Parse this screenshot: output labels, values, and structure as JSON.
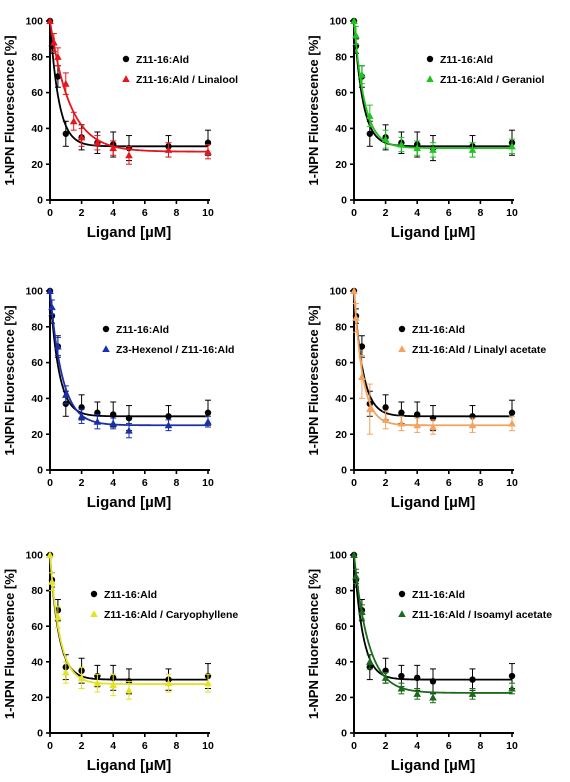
{
  "chart_data": [
    {
      "type": "scatter",
      "xlabel": "Ligand [µM]",
      "ylabel": "1-NPN Fluorescence [%]",
      "xlim": [
        0,
        10
      ],
      "ylim": [
        0,
        100
      ],
      "xticks": [
        "0",
        "2",
        "4",
        "6",
        "8",
        "10"
      ],
      "yticks": [
        "0",
        "20",
        "40",
        "60",
        "80",
        "100"
      ],
      "grid": false,
      "legend_position": "top-right",
      "series": [
        {
          "name": "Z11-16:Ald",
          "color": "#000000",
          "marker": "circle",
          "points": [
            {
              "x": 0,
              "y": 100,
              "err": 0
            },
            {
              "x": 0.125,
              "y": 86,
              "err": 4
            },
            {
              "x": 0.5,
              "y": 69,
              "err": 6
            },
            {
              "x": 1,
              "y": 37,
              "err": 7
            },
            {
              "x": 2,
              "y": 35,
              "err": 7
            },
            {
              "x": 3,
              "y": 32,
              "err": 6
            },
            {
              "x": 4,
              "y": 31,
              "err": 7
            },
            {
              "x": 5,
              "y": 29,
              "err": 7
            },
            {
              "x": 7.5,
              "y": 30,
              "err": 6
            },
            {
              "x": 10,
              "y": 32,
              "err": 7
            }
          ],
          "fit": {
            "plateau": 30,
            "k": 1.8
          }
        },
        {
          "name": "Z11-16:Ald / Linalool",
          "color": "#e8141b",
          "marker": "triangle",
          "points": [
            {
              "x": 0,
              "y": 100,
              "err": 0
            },
            {
              "x": 0.25,
              "y": 88,
              "err": 5
            },
            {
              "x": 0.5,
              "y": 80,
              "err": 5
            },
            {
              "x": 1,
              "y": 65,
              "err": 6
            },
            {
              "x": 1.5,
              "y": 44,
              "err": 5
            },
            {
              "x": 2,
              "y": 35,
              "err": 5
            },
            {
              "x": 3,
              "y": 32,
              "err": 4
            },
            {
              "x": 4,
              "y": 29,
              "err": 4
            },
            {
              "x": 5,
              "y": 25,
              "err": 5
            },
            {
              "x": 7.5,
              "y": 28,
              "err": 4
            },
            {
              "x": 10,
              "y": 27,
              "err": 4
            }
          ],
          "fit": {
            "plateau": 27,
            "k": 0.8
          }
        }
      ]
    },
    {
      "type": "scatter",
      "xlabel": "Ligand [µM]",
      "ylabel": "1-NPN Fluorescence [%]",
      "xlim": [
        0,
        10
      ],
      "ylim": [
        0,
        100
      ],
      "xticks": [
        "0",
        "2",
        "4",
        "6",
        "8",
        "10"
      ],
      "yticks": [
        "0",
        "20",
        "40",
        "60",
        "80",
        "100"
      ],
      "grid": false,
      "legend_position": "top-right",
      "series": [
        {
          "name": "Z11-16:Ald",
          "color": "#000000",
          "marker": "circle",
          "points": [
            {
              "x": 0,
              "y": 100,
              "err": 0
            },
            {
              "x": 0.125,
              "y": 86,
              "err": 4
            },
            {
              "x": 0.5,
              "y": 69,
              "err": 6
            },
            {
              "x": 1,
              "y": 37,
              "err": 7
            },
            {
              "x": 2,
              "y": 35,
              "err": 7
            },
            {
              "x": 3,
              "y": 32,
              "err": 6
            },
            {
              "x": 4,
              "y": 31,
              "err": 7
            },
            {
              "x": 5,
              "y": 29,
              "err": 7
            },
            {
              "x": 7.5,
              "y": 30,
              "err": 6
            },
            {
              "x": 10,
              "y": 32,
              "err": 7
            }
          ],
          "fit": {
            "plateau": 30,
            "k": 1.8
          }
        },
        {
          "name": "Z11-16:Ald / Geraniol",
          "color": "#1fc41f",
          "marker": "triangle",
          "points": [
            {
              "x": 0,
              "y": 100,
              "err": 0
            },
            {
              "x": 0.125,
              "y": 92,
              "err": 5
            },
            {
              "x": 0.5,
              "y": 70,
              "err": 5
            },
            {
              "x": 1,
              "y": 47,
              "err": 6
            },
            {
              "x": 2,
              "y": 34,
              "err": 5
            },
            {
              "x": 3,
              "y": 31,
              "err": 4
            },
            {
              "x": 4,
              "y": 29,
              "err": 4
            },
            {
              "x": 5,
              "y": 28,
              "err": 4
            },
            {
              "x": 7.5,
              "y": 28,
              "err": 4
            },
            {
              "x": 10,
              "y": 30,
              "err": 4
            }
          ],
          "fit": {
            "plateau": 29,
            "k": 1.5
          }
        }
      ]
    },
    {
      "type": "scatter",
      "xlabel": "Ligand [µM]",
      "ylabel": "1-NPN Fluorescence [%]",
      "xlim": [
        0,
        10
      ],
      "ylim": [
        0,
        100
      ],
      "xticks": [
        "0",
        "2",
        "4",
        "6",
        "8",
        "10"
      ],
      "yticks": [
        "0",
        "20",
        "40",
        "60",
        "80",
        "100"
      ],
      "grid": false,
      "legend_position": "middle-right",
      "series": [
        {
          "name": "Z11-16:Ald",
          "color": "#000000",
          "marker": "circle",
          "points": [
            {
              "x": 0,
              "y": 100,
              "err": 0
            },
            {
              "x": 0.125,
              "y": 86,
              "err": 4
            },
            {
              "x": 0.5,
              "y": 69,
              "err": 6
            },
            {
              "x": 1,
              "y": 37,
              "err": 7
            },
            {
              "x": 2,
              "y": 35,
              "err": 7
            },
            {
              "x": 3,
              "y": 32,
              "err": 6
            },
            {
              "x": 4,
              "y": 31,
              "err": 7
            },
            {
              "x": 5,
              "y": 29,
              "err": 7
            },
            {
              "x": 7.5,
              "y": 30,
              "err": 6
            },
            {
              "x": 10,
              "y": 32,
              "err": 7
            }
          ],
          "fit": {
            "plateau": 30,
            "k": 1.8
          }
        },
        {
          "name": "Z3-Hexenol / Z11-16:Ald",
          "color": "#1a2fae",
          "marker": "triangle",
          "points": [
            {
              "x": 0,
              "y": 100,
              "err": 0
            },
            {
              "x": 0.125,
              "y": 91,
              "err": 4
            },
            {
              "x": 0.5,
              "y": 69,
              "err": 5
            },
            {
              "x": 1,
              "y": 42,
              "err": 5
            },
            {
              "x": 2,
              "y": 30,
              "err": 4
            },
            {
              "x": 3,
              "y": 27,
              "err": 4
            },
            {
              "x": 4,
              "y": 26,
              "err": 3
            },
            {
              "x": 5,
              "y": 22,
              "err": 4
            },
            {
              "x": 7.5,
              "y": 25,
              "err": 3
            },
            {
              "x": 10,
              "y": 27,
              "err": 3
            }
          ],
          "fit": {
            "plateau": 25,
            "k": 1.3
          }
        }
      ]
    },
    {
      "type": "scatter",
      "xlabel": "Ligand [µM]",
      "ylabel": "1-NPN Fluorescence [%]",
      "xlim": [
        0,
        10
      ],
      "ylim": [
        0,
        100
      ],
      "xticks": [
        "0",
        "2",
        "4",
        "6",
        "8",
        "10"
      ],
      "yticks": [
        "0",
        "20",
        "40",
        "60",
        "80",
        "100"
      ],
      "grid": false,
      "legend_position": "middle-right",
      "series": [
        {
          "name": "Z11-16:Ald",
          "color": "#000000",
          "marker": "circle",
          "points": [
            {
              "x": 0,
              "y": 100,
              "err": 0
            },
            {
              "x": 0.125,
              "y": 86,
              "err": 4
            },
            {
              "x": 0.5,
              "y": 69,
              "err": 6
            },
            {
              "x": 1,
              "y": 37,
              "err": 7
            },
            {
              "x": 2,
              "y": 35,
              "err": 7
            },
            {
              "x": 3,
              "y": 32,
              "err": 6
            },
            {
              "x": 4,
              "y": 31,
              "err": 7
            },
            {
              "x": 5,
              "y": 29,
              "err": 7
            },
            {
              "x": 7.5,
              "y": 30,
              "err": 6
            },
            {
              "x": 10,
              "y": 32,
              "err": 7
            }
          ],
          "fit": {
            "plateau": 30,
            "k": 1.8
          }
        },
        {
          "name": "Z11-16:Ald / Linalyl acetate",
          "color": "#f5a25d",
          "marker": "triangle",
          "points": [
            {
              "x": 0,
              "y": 100,
              "err": 0
            },
            {
              "x": 0.125,
              "y": 85,
              "err": 8
            },
            {
              "x": 0.5,
              "y": 52,
              "err": 12
            },
            {
              "x": 1,
              "y": 34,
              "err": 14
            },
            {
              "x": 2,
              "y": 28,
              "err": 5
            },
            {
              "x": 3,
              "y": 26,
              "err": 4
            },
            {
              "x": 4,
              "y": 25,
              "err": 4
            },
            {
              "x": 5,
              "y": 24,
              "err": 4
            },
            {
              "x": 7.5,
              "y": 25,
              "err": 4
            },
            {
              "x": 10,
              "y": 26,
              "err": 4
            }
          ],
          "fit": {
            "plateau": 25,
            "k": 1.8
          }
        }
      ]
    },
    {
      "type": "scatter",
      "xlabel": "Ligand [µM]",
      "ylabel": "1-NPN Fluorescence [%]",
      "xlim": [
        0,
        10
      ],
      "ylim": [
        0,
        100
      ],
      "xticks": [
        "0",
        "2",
        "4",
        "6",
        "8",
        "10"
      ],
      "yticks": [
        "0",
        "20",
        "40",
        "60",
        "80",
        "100"
      ],
      "grid": false,
      "legend_position": "middle-right",
      "series": [
        {
          "name": "Z11-16:Ald",
          "color": "#000000",
          "marker": "circle",
          "points": [
            {
              "x": 0,
              "y": 100,
              "err": 0
            },
            {
              "x": 0.125,
              "y": 86,
              "err": 4
            },
            {
              "x": 0.5,
              "y": 69,
              "err": 6
            },
            {
              "x": 1,
              "y": 37,
              "err": 7
            },
            {
              "x": 2,
              "y": 35,
              "err": 7
            },
            {
              "x": 3,
              "y": 32,
              "err": 6
            },
            {
              "x": 4,
              "y": 31,
              "err": 7
            },
            {
              "x": 5,
              "y": 29,
              "err": 7
            },
            {
              "x": 7.5,
              "y": 30,
              "err": 6
            },
            {
              "x": 10,
              "y": 32,
              "err": 7
            }
          ],
          "fit": {
            "plateau": 30,
            "k": 1.8
          }
        },
        {
          "name": "Z11-16:Ald / Caryophyllene",
          "color": "#e3e324",
          "marker": "triangle",
          "points": [
            {
              "x": 0,
              "y": 100,
              "err": 0
            },
            {
              "x": 0.125,
              "y": 85,
              "err": 5
            },
            {
              "x": 0.5,
              "y": 65,
              "err": 6
            },
            {
              "x": 1,
              "y": 34,
              "err": 6
            },
            {
              "x": 2,
              "y": 31,
              "err": 6
            },
            {
              "x": 3,
              "y": 28,
              "err": 5
            },
            {
              "x": 4,
              "y": 27,
              "err": 6
            },
            {
              "x": 5,
              "y": 24,
              "err": 5
            },
            {
              "x": 7.5,
              "y": 28,
              "err": 5
            },
            {
              "x": 10,
              "y": 28,
              "err": 5
            }
          ],
          "fit": {
            "plateau": 27.5,
            "k": 1.6
          }
        }
      ]
    },
    {
      "type": "scatter",
      "xlabel": "Ligand [µM]",
      "ylabel": "1-NPN Fluorescence [%]",
      "xlim": [
        0,
        10
      ],
      "ylim": [
        0,
        100
      ],
      "xticks": [
        "0",
        "2",
        "4",
        "6",
        "8",
        "10"
      ],
      "yticks": [
        "0",
        "20",
        "40",
        "60",
        "80",
        "100"
      ],
      "grid": false,
      "legend_position": "middle-right",
      "series": [
        {
          "name": "Z11-16:Ald",
          "color": "#000000",
          "marker": "circle",
          "points": [
            {
              "x": 0,
              "y": 100,
              "err": 0
            },
            {
              "x": 0.125,
              "y": 86,
              "err": 4
            },
            {
              "x": 0.5,
              "y": 69,
              "err": 6
            },
            {
              "x": 1,
              "y": 37,
              "err": 7
            },
            {
              "x": 2,
              "y": 35,
              "err": 7
            },
            {
              "x": 3,
              "y": 32,
              "err": 6
            },
            {
              "x": 4,
              "y": 31,
              "err": 7
            },
            {
              "x": 5,
              "y": 29,
              "err": 7
            },
            {
              "x": 7.5,
              "y": 30,
              "err": 6
            },
            {
              "x": 10,
              "y": 32,
              "err": 7
            }
          ],
          "fit": {
            "plateau": 30,
            "k": 1.8
          }
        },
        {
          "name": "Z11-16:Ald / Isoamyl acetate",
          "color": "#1c6b1c",
          "marker": "triangle",
          "points": [
            {
              "x": 0,
              "y": 100,
              "err": 0
            },
            {
              "x": 0.125,
              "y": 88,
              "err": 4
            },
            {
              "x": 0.5,
              "y": 68,
              "err": 4
            },
            {
              "x": 1,
              "y": 40,
              "err": 4
            },
            {
              "x": 2,
              "y": 31,
              "err": 3
            },
            {
              "x": 3,
              "y": 25,
              "err": 3
            },
            {
              "x": 4,
              "y": 22,
              "err": 3
            },
            {
              "x": 5,
              "y": 20,
              "err": 3
            },
            {
              "x": 7.5,
              "y": 22,
              "err": 3
            },
            {
              "x": 10,
              "y": 25,
              "err": 3
            }
          ],
          "fit": {
            "plateau": 22.5,
            "k": 1.1
          }
        }
      ]
    }
  ]
}
